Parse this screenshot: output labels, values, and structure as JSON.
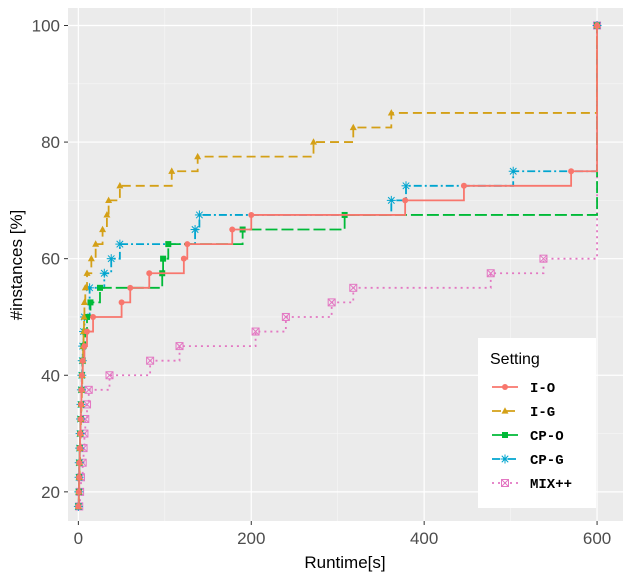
{
  "chart_data": {
    "type": "line",
    "title": "",
    "xlabel": "Runtime[s]",
    "ylabel": "#instances [%]",
    "xlim": [
      -12,
      630
    ],
    "ylim": [
      15,
      103
    ],
    "xticks": [
      0,
      200,
      400,
      600
    ],
    "yticks": [
      20,
      40,
      60,
      80,
      100
    ],
    "xtick_labels": [
      "0",
      "200",
      "400",
      "600"
    ],
    "ytick_labels": [
      "20",
      "40",
      "60",
      "80",
      "100"
    ],
    "grid": true,
    "legend": {
      "title": "Setting",
      "position": "bottom-right"
    },
    "series": [
      {
        "name": "I-O",
        "color": "#F8766D",
        "dash": "",
        "marker": "circle",
        "points": [
          [
            0,
            17.5
          ],
          [
            0.5,
            20
          ],
          [
            0.8,
            22.5
          ],
          [
            1,
            25
          ],
          [
            1.5,
            27.5
          ],
          [
            2,
            30
          ],
          [
            2.5,
            32.5
          ],
          [
            3,
            35
          ],
          [
            3.5,
            37.5
          ],
          [
            4,
            40
          ],
          [
            5,
            42.5
          ],
          [
            7,
            45
          ],
          [
            10,
            47.5
          ],
          [
            17,
            50
          ],
          [
            50,
            52.5
          ],
          [
            60,
            55
          ],
          [
            82,
            57.5
          ],
          [
            122,
            60
          ],
          [
            126,
            62.5
          ],
          [
            178,
            65
          ],
          [
            200,
            67.5
          ],
          [
            378,
            70
          ],
          [
            446,
            72.5
          ],
          [
            570,
            75
          ],
          [
            600,
            100
          ]
        ]
      },
      {
        "name": "I-G",
        "color": "#D4A017",
        "dash": "9,5",
        "marker": "triangle",
        "points": [
          [
            0,
            17.5
          ],
          [
            0.5,
            20
          ],
          [
            1,
            22.5
          ],
          [
            1.5,
            25
          ],
          [
            2,
            27.5
          ],
          [
            2.5,
            30
          ],
          [
            3,
            32.5
          ],
          [
            3.5,
            35
          ],
          [
            4,
            37.5
          ],
          [
            4.5,
            40
          ],
          [
            5,
            42.5
          ],
          [
            5.5,
            45
          ],
          [
            6,
            47.5
          ],
          [
            6.5,
            50
          ],
          [
            7,
            52.5
          ],
          [
            8,
            55
          ],
          [
            10,
            57.5
          ],
          [
            15,
            60
          ],
          [
            20,
            62.5
          ],
          [
            28,
            65
          ],
          [
            33,
            67.5
          ],
          [
            35,
            70
          ],
          [
            48,
            72.5
          ],
          [
            108,
            75
          ],
          [
            138,
            77.5
          ],
          [
            272,
            80
          ],
          [
            318,
            82.5
          ],
          [
            362,
            85
          ],
          [
            600,
            100
          ]
        ]
      },
      {
        "name": "CP-O",
        "color": "#00BA38",
        "dash": "12,4",
        "marker": "square",
        "points": [
          [
            0,
            17.5
          ],
          [
            0.5,
            20
          ],
          [
            0.8,
            22.5
          ],
          [
            1,
            25
          ],
          [
            1.5,
            27.5
          ],
          [
            2,
            30
          ],
          [
            2.5,
            32.5
          ],
          [
            3,
            35
          ],
          [
            3.5,
            37.5
          ],
          [
            4,
            40
          ],
          [
            5,
            42.5
          ],
          [
            6,
            45
          ],
          [
            8,
            47.5
          ],
          [
            10,
            50
          ],
          [
            14,
            52.5
          ],
          [
            25,
            55
          ],
          [
            97,
            57.5
          ],
          [
            98,
            60
          ],
          [
            104,
            62.5
          ],
          [
            190,
            65
          ],
          [
            308,
            67.5
          ],
          [
            600,
            100
          ]
        ]
      },
      {
        "name": "CP-G",
        "color": "#00A5CF",
        "dash": "8,3,2,3",
        "marker": "asterisk",
        "points": [
          [
            0,
            17.5
          ],
          [
            0.5,
            20
          ],
          [
            0.8,
            22.5
          ],
          [
            1,
            25
          ],
          [
            1.5,
            27.5
          ],
          [
            2,
            30
          ],
          [
            2.5,
            32.5
          ],
          [
            3,
            35
          ],
          [
            3.5,
            37.5
          ],
          [
            4,
            40
          ],
          [
            4.5,
            42.5
          ],
          [
            5,
            45
          ],
          [
            6,
            47.5
          ],
          [
            7,
            50
          ],
          [
            13,
            55
          ],
          [
            30,
            57.5
          ],
          [
            38,
            60
          ],
          [
            48,
            62.5
          ],
          [
            135,
            65
          ],
          [
            140,
            67.5
          ],
          [
            362,
            70
          ],
          [
            379,
            72.5
          ],
          [
            503,
            75
          ],
          [
            600,
            100
          ]
        ]
      },
      {
        "name": "MIX++",
        "color": "#E377C2",
        "dash": "2,4",
        "marker": "boxcross",
        "points": [
          [
            1,
            17.5
          ],
          [
            2,
            20
          ],
          [
            3,
            22.5
          ],
          [
            5,
            25
          ],
          [
            6,
            27.5
          ],
          [
            7,
            30
          ],
          [
            8,
            32.5
          ],
          [
            10,
            35
          ],
          [
            12,
            37.5
          ],
          [
            36,
            40
          ],
          [
            83,
            42.5
          ],
          [
            117,
            45
          ],
          [
            205,
            47.5
          ],
          [
            240,
            50
          ],
          [
            293,
            52.5
          ],
          [
            318,
            55
          ],
          [
            477,
            57.5
          ],
          [
            538,
            60
          ],
          [
            600,
            100
          ]
        ]
      }
    ]
  }
}
